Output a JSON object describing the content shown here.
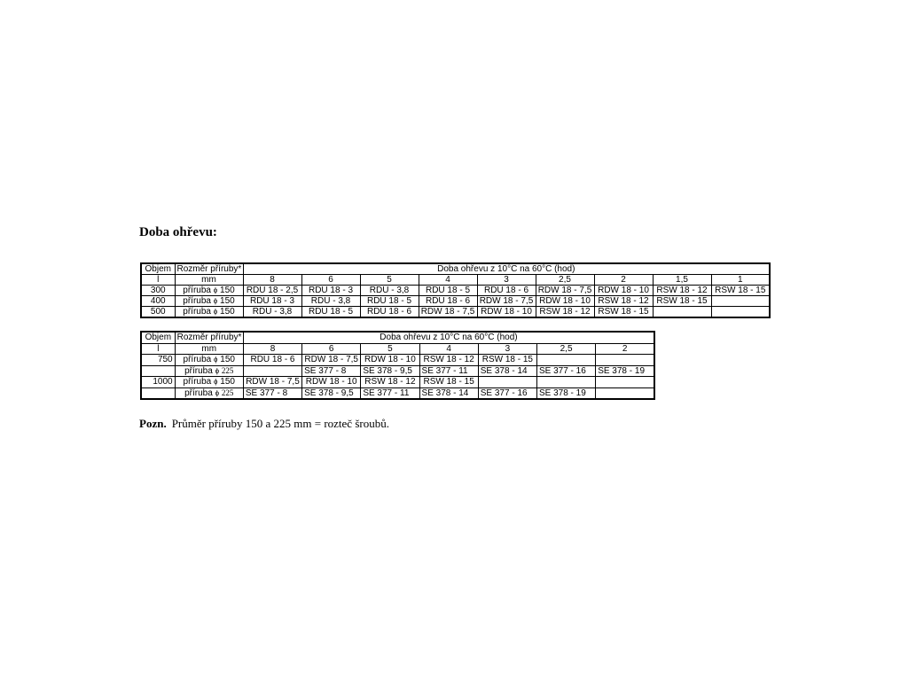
{
  "title": "Doba ohřevu:",
  "table1": {
    "h_objem": "Objem",
    "h_rozmer": "Rozměr příruby*",
    "h_doba": "Doba ohřevu z 10°C na 60°C (hod)",
    "u_objem": "l",
    "u_rozmer": "mm",
    "times": [
      "8",
      "6",
      "5",
      "4",
      "3",
      "2,5",
      "2",
      "1,5",
      "1"
    ],
    "rows": [
      {
        "objem": "300",
        "flange": "příruba",
        "dia": "150",
        "cells": [
          "RDU 18 - 2,5",
          "RDU 18 - 3",
          "RDU - 3,8",
          "RDU 18 - 5",
          "RDU 18 - 6",
          "RDW 18 - 7,5",
          "RDW 18 - 10",
          "RSW 18 - 12",
          "RSW 18 - 15"
        ]
      },
      {
        "objem": "400",
        "flange": "příruba",
        "dia": "150",
        "cells": [
          "RDU 18 - 3",
          "RDU - 3,8",
          "RDU 18 - 5",
          "RDU 18 - 6",
          "RDW 18 - 7,5",
          "RDW 18 - 10",
          "RSW 18 - 12",
          "RSW 18 - 15",
          ""
        ]
      },
      {
        "objem": "500",
        "flange": "příruba",
        "dia": "150",
        "cells": [
          "RDU - 3,8",
          "RDU 18 - 5",
          "RDU 18 - 6",
          "RDW 18 - 7,5",
          "RDW 18 - 10",
          "RSW 18 - 12",
          "RSW 18 - 15",
          "",
          ""
        ]
      }
    ]
  },
  "table2": {
    "h_objem": "Objem",
    "h_rozmer": "Rozměr příruby*",
    "h_doba": "Doba ohřevu z 10°C na 60°C (hod)",
    "u_objem": "l",
    "u_rozmer": "mm",
    "times": [
      "8",
      "6",
      "5",
      "4",
      "3",
      "2,5",
      "2"
    ],
    "rows": [
      {
        "objem": "750",
        "flange": "příruba",
        "dia": "150",
        "cells": [
          "RDU 18 - 6",
          "RDW 18 - 7,5",
          "RDW 18 - 10",
          "RSW 18 - 12",
          "RSW 18 - 15",
          "",
          ""
        ]
      },
      {
        "objem": "",
        "flange": "příruba",
        "dia": "225",
        "cells": [
          "",
          "SE 377 - 8",
          "SE 378 - 9,5",
          "SE 377 - 11",
          "SE 378 - 14",
          "SE 377 - 16",
          "SE 378 - 19"
        ]
      },
      {
        "objem": "1000",
        "flange": "příruba",
        "dia": "150",
        "cells": [
          "RDW 18 - 7,5",
          "RDW 18 - 10",
          "RSW 18 - 12",
          "RSW 18 - 15",
          "",
          "",
          ""
        ]
      },
      {
        "objem": "",
        "flange": "příruba",
        "dia": "225",
        "cells": [
          "SE 377 - 8",
          "SE 378 - 9,5",
          "SE 377 - 11",
          "SE 378 - 14",
          "SE 377 - 16",
          "SE 378 - 19",
          ""
        ]
      }
    ]
  },
  "note": {
    "label": "Pozn.",
    "text": "Průměr příruby 150 a 225 mm = rozteč šroubů."
  },
  "phi": "ϕ"
}
